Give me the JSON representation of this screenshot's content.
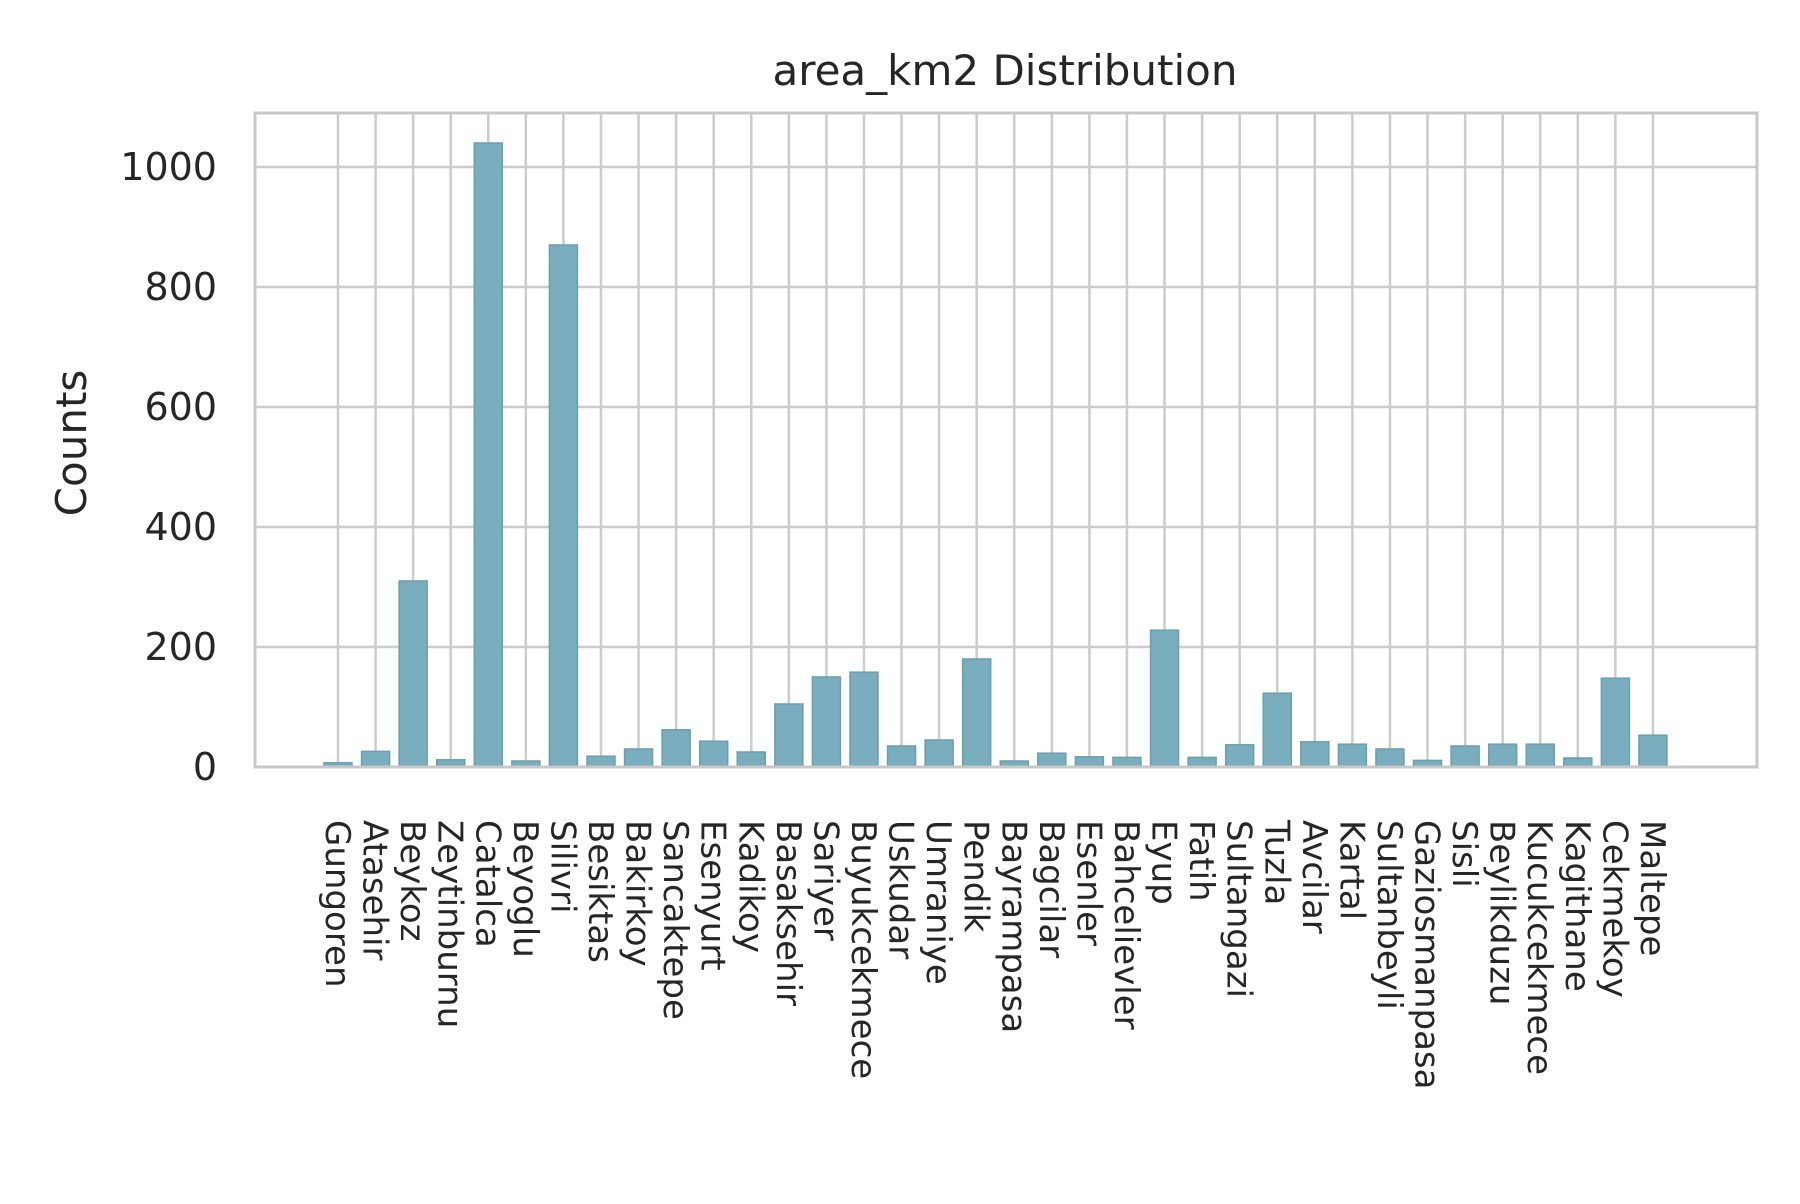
{
  "chart_data": {
    "type": "bar",
    "title": "area_km2 Distribution",
    "xlabel": "",
    "ylabel": "Counts",
    "ylim": [
      0,
      1090
    ],
    "yticks": [
      0,
      200,
      400,
      600,
      800,
      1000
    ],
    "grid": true,
    "bar_color": "#7aadbd",
    "categories": [
      "Gungoren",
      "Atasehir",
      "Beykoz",
      "Zeytinburnu",
      "Catalca",
      "Beyoglu",
      "Silivri",
      "Besiktas",
      "Bakirkoy",
      "Sancaktepe",
      "Esenyurt",
      "Kadikoy",
      "Basaksehir",
      "Sariyer",
      "Buyukcekmece",
      "Uskudar",
      "Umraniye",
      "Pendik",
      "Bayrampasa",
      "Bagcilar",
      "Esenler",
      "Bahcelievler",
      "Eyup",
      "Fatih",
      "Sultangazi",
      "Tuzla",
      "Avcilar",
      "Kartal",
      "Sultanbeyli",
      "Gaziosmanpasa",
      "Sisli",
      "Beylikduzu",
      "Kucukcekmece",
      "Kagithane",
      "Cekmekoy",
      "Maltepe"
    ],
    "values": [
      7,
      26,
      310,
      12,
      1040,
      10,
      870,
      18,
      30,
      62,
      43,
      25,
      105,
      150,
      158,
      35,
      45,
      180,
      10,
      23,
      17,
      16,
      228,
      16,
      37,
      123,
      42,
      38,
      30,
      11,
      35,
      38,
      38,
      15,
      148,
      53
    ]
  }
}
